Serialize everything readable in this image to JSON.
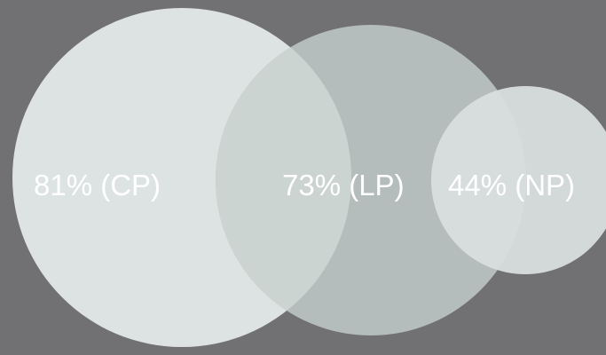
{
  "chart_data": {
    "type": "venn",
    "sets": [
      {
        "id": "cp",
        "label": "81% (CP)",
        "value": 81,
        "color": "#dde3e2"
      },
      {
        "id": "lp",
        "label": "73% (LP)",
        "value": 73,
        "color": "#b4bdbb"
      },
      {
        "id": "np",
        "label": "44% (NP)",
        "value": 44,
        "color": "#d3d9d8"
      }
    ]
  },
  "colors": {
    "background": "#717072",
    "overlap_cp_lp": "#ccd4d2",
    "overlap_lp_np": "#d7dddc",
    "text": "#ffffff"
  }
}
